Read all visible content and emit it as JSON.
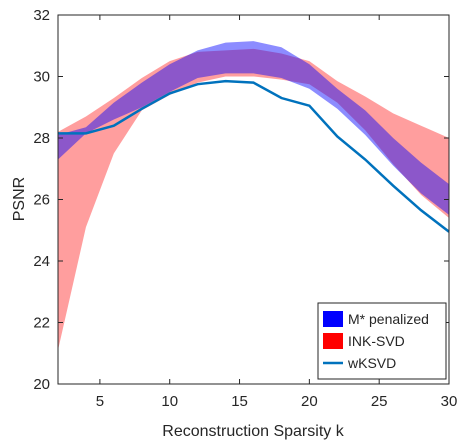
{
  "chart_data": {
    "type": "area",
    "title": "",
    "xlabel": "Reconstruction Sparsity k",
    "ylabel": "PSNR",
    "xlim": [
      2,
      30
    ],
    "ylim": [
      20,
      32
    ],
    "xticks": [
      5,
      10,
      15,
      20,
      25,
      30
    ],
    "yticks": [
      20,
      22,
      24,
      26,
      28,
      30,
      32
    ],
    "grid": false,
    "legend_position": "bottom-right",
    "x": [
      2,
      4,
      6,
      8,
      10,
      12,
      14,
      16,
      18,
      20,
      22,
      24,
      26,
      28,
      30
    ],
    "series": [
      {
        "name": "M* penalized",
        "kind": "band",
        "color": "#0000ff",
        "lower": [
          27.3,
          28.15,
          28.6,
          29.0,
          29.5,
          29.95,
          30.1,
          30.1,
          29.95,
          29.6,
          28.95,
          28.1,
          27.1,
          26.2,
          25.5
        ],
        "upper": [
          28.1,
          28.35,
          29.15,
          29.8,
          30.4,
          30.85,
          31.1,
          31.15,
          30.95,
          30.4,
          29.6,
          28.9,
          28.0,
          27.2,
          26.5
        ]
      },
      {
        "name": "INK-SVD",
        "kind": "band",
        "color": "#ff0000",
        "lower": [
          21.1,
          25.1,
          27.5,
          28.9,
          29.4,
          29.8,
          30.0,
          30.0,
          29.9,
          29.75,
          29.15,
          28.25,
          27.15,
          26.15,
          25.4
        ],
        "upper": [
          28.2,
          28.7,
          29.3,
          29.95,
          30.5,
          30.8,
          30.85,
          30.9,
          30.75,
          30.5,
          29.85,
          29.35,
          28.8,
          28.4,
          28.0
        ]
      },
      {
        "name": "wKSVD",
        "kind": "line",
        "color": "#0072bd",
        "values": [
          28.15,
          28.15,
          28.4,
          28.95,
          29.45,
          29.75,
          29.85,
          29.8,
          29.3,
          29.05,
          28.05,
          27.3,
          26.45,
          25.65,
          24.95
        ]
      }
    ]
  }
}
